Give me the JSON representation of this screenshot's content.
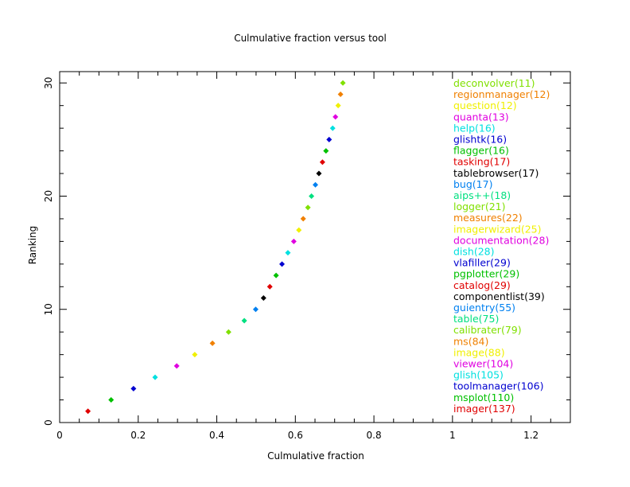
{
  "chart_data": {
    "type": "scatter",
    "title": "Culmulative fraction versus tool",
    "xlabel": "Culmulative fraction",
    "ylabel": "Ranking",
    "xlim": [
      0,
      1.3
    ],
    "ylim": [
      0,
      31
    ],
    "x_ticks": [
      0,
      0.2,
      0.4,
      0.6,
      0.8,
      1,
      1.2
    ],
    "x_tick_labels": [
      "0",
      "0.2",
      "0.4",
      "0.6",
      "0.8",
      "1",
      "1.2"
    ],
    "y_ticks": [
      0,
      10,
      20,
      30
    ],
    "y_tick_labels": [
      "0",
      "10",
      "20",
      "30"
    ],
    "grid": false,
    "legend_position": "right",
    "points": [
      {
        "rank": 1,
        "x": 0.072,
        "label": "imager(137)",
        "color": "#e00000"
      },
      {
        "rank": 2,
        "x": 0.131,
        "label": "msplot(110)",
        "color": "#00c000"
      },
      {
        "rank": 3,
        "x": 0.188,
        "label": "toolmanager(106)",
        "color": "#0000d0"
      },
      {
        "rank": 4,
        "x": 0.243,
        "label": "glish(105)",
        "color": "#00e0e0"
      },
      {
        "rank": 5,
        "x": 0.298,
        "label": "viewer(104)",
        "color": "#e000e0"
      },
      {
        "rank": 6,
        "x": 0.344,
        "label": "image(88)",
        "color": "#f0f000"
      },
      {
        "rank": 7,
        "x": 0.389,
        "label": "ms(84)",
        "color": "#f08000"
      },
      {
        "rank": 8,
        "x": 0.43,
        "label": "calibrater(79)",
        "color": "#80e000"
      },
      {
        "rank": 9,
        "x": 0.47,
        "label": "table(75)",
        "color": "#00e080"
      },
      {
        "rank": 10,
        "x": 0.499,
        "label": "guientry(55)",
        "color": "#0080f0"
      },
      {
        "rank": 11,
        "x": 0.519,
        "label": "componentlist(39)",
        "color": "#000000"
      },
      {
        "rank": 12,
        "x": 0.535,
        "label": "catalog(29)",
        "color": "#e00000"
      },
      {
        "rank": 13,
        "x": 0.551,
        "label": "pgplotter(29)",
        "color": "#00c000"
      },
      {
        "rank": 14,
        "x": 0.566,
        "label": "vlafiller(29)",
        "color": "#0000d0"
      },
      {
        "rank": 15,
        "x": 0.581,
        "label": "dish(28)",
        "color": "#00e0e0"
      },
      {
        "rank": 16,
        "x": 0.596,
        "label": "documentation(28)",
        "color": "#e000e0"
      },
      {
        "rank": 17,
        "x": 0.609,
        "label": "imagerwizard(25)",
        "color": "#f0f000"
      },
      {
        "rank": 18,
        "x": 0.62,
        "label": "measures(22)",
        "color": "#f08000"
      },
      {
        "rank": 19,
        "x": 0.632,
        "label": "logger(21)",
        "color": "#80e000"
      },
      {
        "rank": 20,
        "x": 0.641,
        "label": "aips++(18)",
        "color": "#00e080"
      },
      {
        "rank": 21,
        "x": 0.651,
        "label": "bug(17)",
        "color": "#0080f0"
      },
      {
        "rank": 22,
        "x": 0.66,
        "label": "tablebrowser(17)",
        "color": "#000000"
      },
      {
        "rank": 23,
        "x": 0.669,
        "label": "tasking(17)",
        "color": "#e00000"
      },
      {
        "rank": 24,
        "x": 0.678,
        "label": "flagger(16)",
        "color": "#00c000"
      },
      {
        "rank": 25,
        "x": 0.686,
        "label": "glishtk(16)",
        "color": "#0000d0"
      },
      {
        "rank": 26,
        "x": 0.695,
        "label": "help(16)",
        "color": "#00e0e0"
      },
      {
        "rank": 27,
        "x": 0.702,
        "label": "quanta(13)",
        "color": "#e000e0"
      },
      {
        "rank": 28,
        "x": 0.709,
        "label": "question(12)",
        "color": "#f0f000"
      },
      {
        "rank": 29,
        "x": 0.715,
        "label": "regionmanager(12)",
        "color": "#f08000"
      },
      {
        "rank": 30,
        "x": 0.721,
        "label": "deconvolver(11)",
        "color": "#80e000"
      }
    ]
  }
}
